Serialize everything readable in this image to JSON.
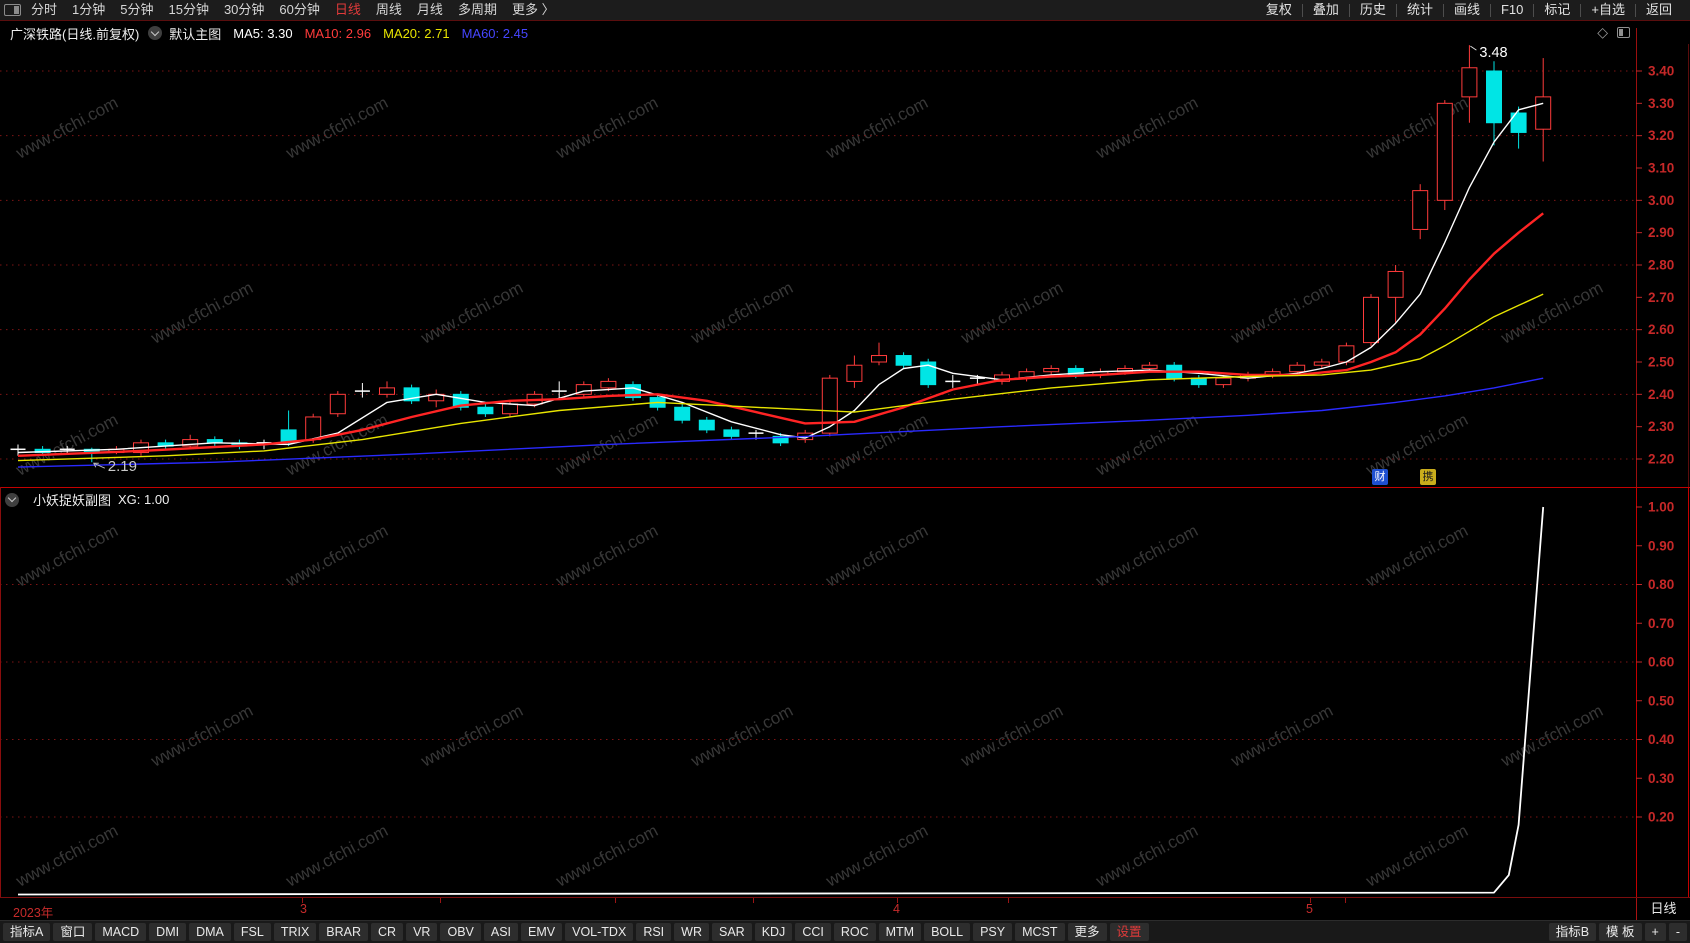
{
  "top_menu": {
    "left_items": [
      {
        "label": "分时",
        "active": false
      },
      {
        "label": "1分钟",
        "active": false
      },
      {
        "label": "5分钟",
        "active": false
      },
      {
        "label": "15分钟",
        "active": false
      },
      {
        "label": "30分钟",
        "active": false
      },
      {
        "label": "60分钟",
        "active": false
      },
      {
        "label": "日线",
        "active": true
      },
      {
        "label": "周线",
        "active": false
      },
      {
        "label": "月线",
        "active": false
      },
      {
        "label": "多周期",
        "active": false
      },
      {
        "label": "更多 〉",
        "active": false
      }
    ],
    "right_items": [
      "复权",
      "叠加",
      "历史",
      "统计",
      "画线",
      "F10",
      "标记",
      "+自选",
      "返回"
    ],
    "active_color": "#e03a3a"
  },
  "info_bar": {
    "title": "广深铁路(日线.前复权)",
    "layout_label": "默认主图",
    "ma_items": [
      {
        "text": "MA5: 3.30",
        "color": "#ffffff"
      },
      {
        "text": "MA10: 2.96",
        "color": "#ff3b3b"
      },
      {
        "text": "MA20: 2.71",
        "color": "#e8e500"
      },
      {
        "text": "MA60: 2.45",
        "color": "#4646ff"
      }
    ]
  },
  "sub_chart": {
    "title": "小妖捉妖副图",
    "signal_label": "XG: 1.00"
  },
  "date_axis": {
    "labels": [
      {
        "text": "2023年",
        "x": 13
      },
      {
        "text": "3",
        "x": 300
      },
      {
        "text": "4",
        "x": 893
      },
      {
        "text": "5",
        "x": 1306
      }
    ],
    "ticks": [
      302,
      440,
      615,
      753,
      897,
      1008,
      1310,
      1345
    ],
    "period_label": "日线"
  },
  "toolbar": {
    "left_items": [
      "指标A",
      "窗口",
      "MACD",
      "DMI",
      "DMA",
      "FSL",
      "TRIX",
      "BRAR",
      "CR",
      "VR",
      "OBV",
      "ASI",
      "EMV",
      "VOL-TDX",
      "RSI",
      "WR",
      "SAR",
      "KDJ",
      "CCI",
      "ROC",
      "MTM",
      "BOLL",
      "PSY",
      "MCST",
      "更多",
      "设置"
    ],
    "right_items": [
      "指标B",
      "模 板",
      "+",
      "-"
    ],
    "highlight_label": "设置",
    "highlight_color": "#e03a3a"
  },
  "badges": [
    {
      "text": "财",
      "bg": "#1e4fd0",
      "fg": "#ffffff"
    },
    {
      "text": "携",
      "bg": "#c9ad1c",
      "fg": "#1d1d1d"
    }
  ],
  "watermark": {
    "text": "www.cfchi.com",
    "color": "#383838"
  },
  "chart_data": [
    {
      "type": "candlestick",
      "title": "广深铁路 日线 前复权",
      "ylim": [
        2.155,
        3.485
      ],
      "y_ticks": [
        2.2,
        2.3,
        2.4,
        2.5,
        2.6,
        2.7,
        2.8,
        2.9,
        3.0,
        3.1,
        3.2,
        3.3,
        3.4
      ],
      "dotted_levels": [
        2.2,
        2.4,
        2.6,
        2.8,
        3.0,
        3.2,
        3.4
      ],
      "up_color": "#ff3b3b",
      "down_color": "#00e5e5",
      "doji_color": "#ffffff",
      "candles": [
        [
          2.22,
          2.23,
          2.245,
          2.21,
          "j"
        ],
        [
          2.23,
          2.22,
          2.24,
          2.21,
          "d"
        ],
        [
          2.22,
          2.23,
          2.24,
          2.215,
          "j"
        ],
        [
          2.23,
          2.22,
          2.235,
          2.19,
          "d"
        ],
        [
          2.22,
          2.23,
          2.24,
          2.215,
          "u"
        ],
        [
          2.22,
          2.25,
          2.26,
          2.21,
          "u"
        ],
        [
          2.25,
          2.24,
          2.26,
          2.23,
          "d"
        ],
        [
          2.24,
          2.26,
          2.275,
          2.23,
          "u"
        ],
        [
          2.26,
          2.25,
          2.27,
          2.24,
          "d"
        ],
        [
          2.25,
          2.24,
          2.26,
          2.23,
          "d"
        ],
        [
          2.24,
          2.25,
          2.26,
          2.23,
          "j"
        ],
        [
          2.29,
          2.25,
          2.35,
          2.24,
          "d"
        ],
        [
          2.26,
          2.33,
          2.34,
          2.25,
          "u"
        ],
        [
          2.34,
          2.4,
          2.41,
          2.33,
          "u"
        ],
        [
          2.41,
          2.41,
          2.435,
          2.39,
          "j"
        ],
        [
          2.4,
          2.42,
          2.44,
          2.39,
          "u"
        ],
        [
          2.42,
          2.38,
          2.43,
          2.37,
          "d"
        ],
        [
          2.38,
          2.4,
          2.415,
          2.36,
          "u"
        ],
        [
          2.4,
          2.36,
          2.41,
          2.35,
          "d"
        ],
        [
          2.36,
          2.34,
          2.37,
          2.33,
          "d"
        ],
        [
          2.34,
          2.37,
          2.38,
          2.33,
          "u"
        ],
        [
          2.37,
          2.4,
          2.41,
          2.36,
          "u"
        ],
        [
          2.41,
          2.41,
          2.44,
          2.385,
          "j"
        ],
        [
          2.4,
          2.43,
          2.44,
          2.39,
          "u"
        ],
        [
          2.42,
          2.44,
          2.45,
          2.41,
          "u"
        ],
        [
          2.43,
          2.39,
          2.44,
          2.38,
          "d"
        ],
        [
          2.39,
          2.36,
          2.4,
          2.35,
          "d"
        ],
        [
          2.36,
          2.32,
          2.37,
          2.31,
          "d"
        ],
        [
          2.32,
          2.29,
          2.33,
          2.28,
          "d"
        ],
        [
          2.29,
          2.27,
          2.3,
          2.26,
          "d"
        ],
        [
          2.27,
          2.28,
          2.29,
          2.26,
          "j"
        ],
        [
          2.27,
          2.25,
          2.28,
          2.24,
          "d"
        ],
        [
          2.26,
          2.28,
          2.29,
          2.25,
          "u"
        ],
        [
          2.28,
          2.45,
          2.46,
          2.27,
          "u"
        ],
        [
          2.44,
          2.49,
          2.52,
          2.42,
          "u"
        ],
        [
          2.5,
          2.52,
          2.56,
          2.49,
          "u"
        ],
        [
          2.52,
          2.49,
          2.53,
          2.48,
          "d"
        ],
        [
          2.5,
          2.43,
          2.51,
          2.42,
          "d"
        ],
        [
          2.44,
          2.44,
          2.46,
          2.42,
          "j"
        ],
        [
          2.44,
          2.45,
          2.46,
          2.43,
          "j"
        ],
        [
          2.44,
          2.46,
          2.47,
          2.43,
          "u"
        ],
        [
          2.45,
          2.47,
          2.48,
          2.44,
          "u"
        ],
        [
          2.47,
          2.48,
          2.49,
          2.46,
          "u"
        ],
        [
          2.48,
          2.46,
          2.49,
          2.45,
          "d"
        ],
        [
          2.46,
          2.47,
          2.48,
          2.45,
          "u"
        ],
        [
          2.47,
          2.48,
          2.49,
          2.46,
          "u"
        ],
        [
          2.48,
          2.49,
          2.5,
          2.47,
          "u"
        ],
        [
          2.49,
          2.45,
          2.5,
          2.44,
          "d"
        ],
        [
          2.45,
          2.43,
          2.46,
          2.42,
          "d"
        ],
        [
          2.43,
          2.45,
          2.46,
          2.42,
          "u"
        ],
        [
          2.45,
          2.46,
          2.47,
          2.44,
          "u"
        ],
        [
          2.46,
          2.47,
          2.48,
          2.45,
          "u"
        ],
        [
          2.47,
          2.49,
          2.5,
          2.46,
          "u"
        ],
        [
          2.49,
          2.5,
          2.51,
          2.48,
          "u"
        ],
        [
          2.5,
          2.55,
          2.56,
          2.49,
          "u"
        ],
        [
          2.56,
          2.7,
          2.71,
          2.55,
          "u"
        ],
        [
          2.7,
          2.78,
          2.8,
          2.62,
          "u"
        ],
        [
          2.91,
          3.03,
          3.05,
          2.88,
          "u"
        ],
        [
          3.0,
          3.3,
          3.31,
          2.97,
          "u"
        ],
        [
          3.32,
          3.41,
          3.48,
          3.24,
          "u"
        ],
        [
          3.4,
          3.24,
          3.43,
          3.17,
          "d"
        ],
        [
          3.27,
          3.21,
          3.29,
          3.16,
          "d"
        ],
        [
          3.22,
          3.32,
          3.44,
          3.12,
          "u"
        ]
      ],
      "ma_lines": [
        {
          "name": "MA5",
          "color": "#ffffff",
          "width": 1.4,
          "points": [
            [
              0,
              2.22
            ],
            [
              4,
              2.23
            ],
            [
              8,
              2.25
            ],
            [
              11,
              2.245
            ],
            [
              13,
              2.28
            ],
            [
              15,
              2.375
            ],
            [
              17,
              2.4
            ],
            [
              19,
              2.375
            ],
            [
              21,
              2.365
            ],
            [
              23,
              2.41
            ],
            [
              25,
              2.42
            ],
            [
              27,
              2.375
            ],
            [
              29,
              2.315
            ],
            [
              31,
              2.275
            ],
            [
              32,
              2.265
            ],
            [
              33,
              2.3
            ],
            [
              34,
              2.35
            ],
            [
              35,
              2.43
            ],
            [
              36,
              2.48
            ],
            [
              37,
              2.49
            ],
            [
              38,
              2.465
            ],
            [
              40,
              2.445
            ],
            [
              42,
              2.46
            ],
            [
              44,
              2.47
            ],
            [
              46,
              2.475
            ],
            [
              48,
              2.465
            ],
            [
              50,
              2.45
            ],
            [
              52,
              2.465
            ],
            [
              53,
              2.48
            ],
            [
              54,
              2.5
            ],
            [
              55,
              2.545
            ],
            [
              56,
              2.62
            ],
            [
              57,
              2.71
            ],
            [
              58,
              2.87
            ],
            [
              59,
              3.04
            ],
            [
              60,
              3.18
            ],
            [
              61,
              3.28
            ],
            [
              62,
              3.3
            ]
          ]
        },
        {
          "name": "MA10",
          "color": "#ff2424",
          "width": 2.4,
          "points": [
            [
              0,
              2.21
            ],
            [
              5,
              2.225
            ],
            [
              10,
              2.245
            ],
            [
              12,
              2.26
            ],
            [
              14,
              2.29
            ],
            [
              16,
              2.33
            ],
            [
              18,
              2.365
            ],
            [
              20,
              2.38
            ],
            [
              22,
              2.385
            ],
            [
              24,
              2.395
            ],
            [
              26,
              2.4
            ],
            [
              28,
              2.38
            ],
            [
              30,
              2.345
            ],
            [
              32,
              2.31
            ],
            [
              34,
              2.315
            ],
            [
              36,
              2.36
            ],
            [
              38,
              2.415
            ],
            [
              40,
              2.445
            ],
            [
              42,
              2.455
            ],
            [
              44,
              2.46
            ],
            [
              46,
              2.47
            ],
            [
              48,
              2.47
            ],
            [
              50,
              2.46
            ],
            [
              52,
              2.46
            ],
            [
              54,
              2.475
            ],
            [
              55,
              2.5
            ],
            [
              56,
              2.53
            ],
            [
              57,
              2.585
            ],
            [
              58,
              2.665
            ],
            [
              59,
              2.755
            ],
            [
              60,
              2.835
            ],
            [
              61,
              2.9
            ],
            [
              62,
              2.96
            ]
          ]
        },
        {
          "name": "MA20",
          "color": "#e8e500",
          "width": 1.4,
          "points": [
            [
              0,
              2.195
            ],
            [
              6,
              2.21
            ],
            [
              10,
              2.225
            ],
            [
              14,
              2.26
            ],
            [
              18,
              2.31
            ],
            [
              22,
              2.35
            ],
            [
              26,
              2.375
            ],
            [
              30,
              2.36
            ],
            [
              34,
              2.345
            ],
            [
              38,
              2.385
            ],
            [
              42,
              2.42
            ],
            [
              46,
              2.445
            ],
            [
              50,
              2.455
            ],
            [
              53,
              2.46
            ],
            [
              55,
              2.475
            ],
            [
              57,
              2.51
            ],
            [
              58,
              2.55
            ],
            [
              59,
              2.595
            ],
            [
              60,
              2.64
            ],
            [
              61,
              2.675
            ],
            [
              62,
              2.71
            ]
          ]
        },
        {
          "name": "MA60",
          "color": "#2a2aff",
          "width": 1.4,
          "points": [
            [
              0,
              2.175
            ],
            [
              8,
              2.19
            ],
            [
              16,
              2.215
            ],
            [
              24,
              2.245
            ],
            [
              32,
              2.27
            ],
            [
              40,
              2.3
            ],
            [
              46,
              2.32
            ],
            [
              50,
              2.335
            ],
            [
              53,
              2.35
            ],
            [
              56,
              2.375
            ],
            [
              58,
              2.395
            ],
            [
              60,
              2.42
            ],
            [
              62,
              2.45
            ]
          ]
        }
      ],
      "annotations": [
        {
          "type": "high",
          "text": "3.48",
          "index": 59,
          "value": 3.48
        },
        {
          "type": "low",
          "text": "2.19",
          "index": 3,
          "value": 2.19
        }
      ]
    },
    {
      "type": "line",
      "name": "XG",
      "color": "#ffffff",
      "ylim": [
        -0.013,
        1.045
      ],
      "y_ticks": [
        0.2,
        0.3,
        0.4,
        0.5,
        0.6,
        0.7,
        0.8,
        0.9,
        1.0
      ],
      "dotted_levels": [
        0.2,
        0.4,
        0.6,
        0.8
      ],
      "points": [
        [
          0,
          0.0
        ],
        [
          60,
          0.005
        ],
        [
          60.6,
          0.05
        ],
        [
          61,
          0.18
        ],
        [
          62,
          1.0
        ]
      ]
    }
  ]
}
